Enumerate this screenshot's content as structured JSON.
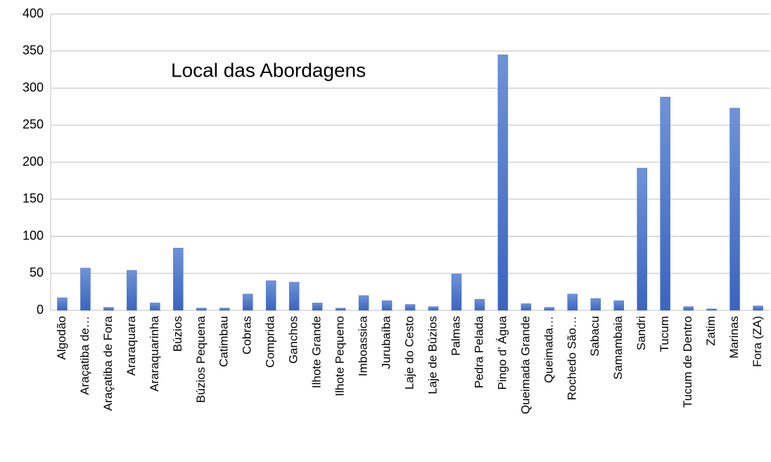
{
  "chart_data": {
    "type": "bar",
    "title": "Local das Abordagens",
    "categories": [
      "Algodão",
      "Araçatiba de…",
      "Araçatiba de Fora",
      "Araraquara",
      "Araraquarinha",
      "Búzios",
      "Búzios Pequena",
      "Catimbau",
      "Cobras",
      "Comprida",
      "Ganchos",
      "Ilhote Grande",
      "Ilhote Pequeno",
      "Imboassica",
      "Jurubaíba",
      "Laje do Cesto",
      "Laje de Búzios",
      "Palmas",
      "Pedra Pelada",
      "Pingo d’ Água",
      "Queimada Grande",
      "Queimada…",
      "Rochedo São…",
      "Sabacu",
      "Samambaia",
      "Sandri",
      "Tucum",
      "Tucum de Dentro",
      "Zatim",
      "Marinas",
      "Fora (ZA)"
    ],
    "values": [
      17,
      57,
      4,
      54,
      10,
      84,
      3,
      3,
      22,
      40,
      38,
      10,
      3,
      20,
      13,
      8,
      5,
      49,
      15,
      345,
      9,
      4,
      22,
      16,
      13,
      192,
      288,
      5,
      2,
      273,
      6
    ],
    "color": "#4472c4",
    "ylim": [
      0,
      400
    ],
    "yticks": [
      0,
      50,
      100,
      150,
      200,
      250,
      300,
      350,
      400
    ],
    "grid": true
  }
}
